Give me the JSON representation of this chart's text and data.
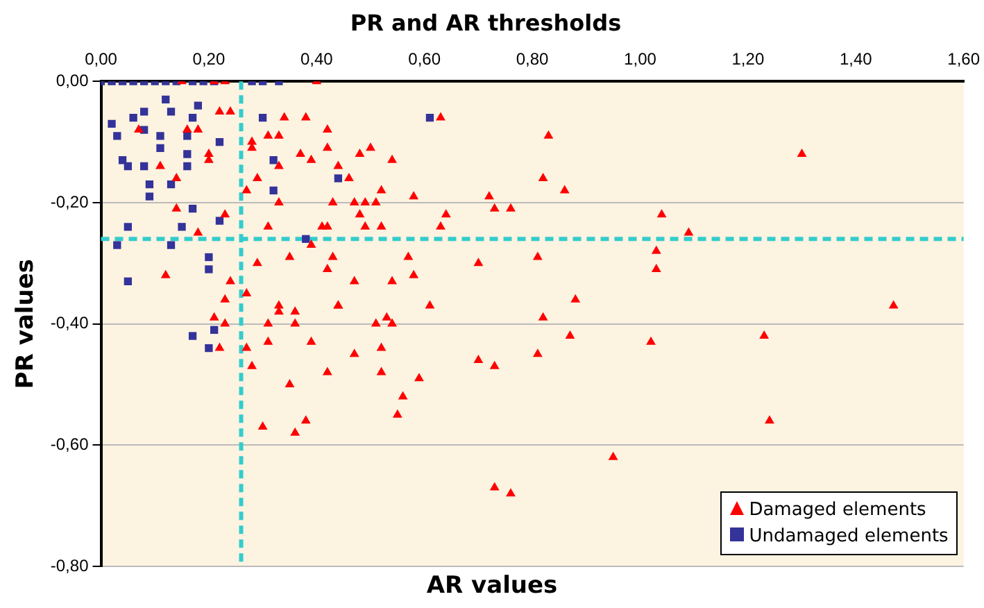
{
  "chart_data": {
    "type": "scatter",
    "title": "PR and AR thresholds",
    "xlabel": "AR values",
    "ylabel": "PR values",
    "xlim": [
      0,
      1.6
    ],
    "xticks": [
      {
        "value": 0,
        "label": "0,00"
      },
      {
        "value": 0.2,
        "label": "0,20"
      },
      {
        "value": 0.4,
        "label": "0,40"
      },
      {
        "value": 0.6,
        "label": "0,60"
      },
      {
        "value": 0.8,
        "label": "0,80"
      },
      {
        "value": 1,
        "label": "1,00"
      },
      {
        "value": 1.2,
        "label": "1,20"
      },
      {
        "value": 1.4,
        "label": "1,40"
      },
      {
        "value": 1.6,
        "label": "1,60"
      }
    ],
    "ylim": [
      -0.8,
      0
    ],
    "yticks": [
      {
        "value": -0.8,
        "label": "-0,80"
      },
      {
        "value": -0.6,
        "label": "-0,60"
      },
      {
        "value": -0.4,
        "label": "-0,40"
      },
      {
        "value": -0.2,
        "label": "-0,20"
      },
      {
        "value": 0,
        "label": "0,00"
      }
    ],
    "grid": "y",
    "legend": "bottom right",
    "ref_lines": [
      {
        "axis": "x",
        "value": 0.26,
        "color": "#33cccc",
        "line_style": "dashed"
      },
      {
        "axis": "y",
        "value": -0.26,
        "color": "#33cccc",
        "line_style": "dashed"
      }
    ],
    "series": [
      {
        "name": "Damaged elements",
        "color": "#ff0000",
        "marker": "triangle",
        "x": [
          0.15,
          0.21,
          0.23,
          0.4,
          0.63,
          0.83,
          1.3,
          0.82,
          0.86,
          0.58,
          0.72,
          0.73,
          0.76,
          0.64,
          0.63,
          1.04,
          1.09,
          0.7,
          0.81,
          1.03,
          1.03,
          0.58,
          0.61,
          0.88,
          1.47,
          0.82,
          0.87,
          0.81,
          1.02,
          1.23,
          0.7,
          0.73,
          0.59,
          1.24,
          0.95,
          0.73,
          0.76,
          0.23,
          0.33,
          0.36,
          0.44,
          0.21,
          0.23,
          0.31,
          0.36,
          0.51,
          0.53,
          0.54,
          0.31,
          0.39,
          0.22,
          0.27,
          0.28,
          0.47,
          0.52,
          0.42,
          0.52,
          0.35,
          0.56,
          0.55,
          0.3,
          0.36,
          0.38,
          0.07,
          0.16,
          0.18,
          0.22,
          0.24,
          0.2,
          0.2,
          0.11,
          0.14,
          0.28,
          0.28,
          0.29,
          0.14,
          0.23,
          0.18,
          0.12,
          0.24,
          0.29,
          0.27,
          0.27,
          0.34,
          0.38,
          0.42,
          0.31,
          0.33,
          0.37,
          0.42,
          0.48,
          0.5,
          0.54,
          0.33,
          0.39,
          0.44,
          0.46,
          0.52,
          0.43,
          0.33,
          0.47,
          0.49,
          0.51,
          0.31,
          0.48,
          0.49,
          0.52,
          0.41,
          0.42,
          0.39,
          0.43,
          0.35,
          0.57,
          0.42,
          0.47,
          0.54,
          0.44,
          0.33
        ],
        "values": [
          0,
          0,
          0,
          0,
          -0.06,
          -0.09,
          -0.12,
          -0.16,
          -0.18,
          -0.19,
          -0.19,
          -0.21,
          -0.21,
          -0.22,
          -0.24,
          -0.22,
          -0.25,
          -0.3,
          -0.29,
          -0.28,
          -0.31,
          -0.32,
          -0.37,
          -0.36,
          -0.37,
          -0.39,
          -0.42,
          -0.45,
          -0.43,
          -0.42,
          -0.46,
          -0.47,
          -0.49,
          -0.56,
          -0.62,
          -0.67,
          -0.68,
          -0.36,
          -0.37,
          -0.38,
          -0.37,
          -0.39,
          -0.4,
          -0.4,
          -0.4,
          -0.4,
          -0.39,
          -0.4,
          -0.43,
          -0.43,
          -0.44,
          -0.44,
          -0.47,
          -0.45,
          -0.44,
          -0.48,
          -0.48,
          -0.5,
          -0.52,
          -0.55,
          -0.57,
          -0.58,
          -0.56,
          -0.08,
          -0.08,
          -0.08,
          -0.05,
          -0.05,
          -0.12,
          -0.13,
          -0.14,
          -0.16,
          -0.1,
          -0.11,
          -0.16,
          -0.21,
          -0.22,
          -0.25,
          -0.32,
          -0.33,
          -0.3,
          -0.35,
          -0.18,
          -0.06,
          -0.06,
          -0.08,
          -0.09,
          -0.09,
          -0.12,
          -0.11,
          -0.12,
          -0.11,
          -0.13,
          -0.14,
          -0.13,
          -0.14,
          -0.16,
          -0.18,
          -0.2,
          -0.2,
          -0.2,
          -0.2,
          -0.2,
          -0.24,
          -0.22,
          -0.24,
          -0.24,
          -0.24,
          -0.24,
          -0.27,
          -0.29,
          -0.29,
          -0.29,
          -0.31,
          -0.33,
          -0.33,
          -0.37,
          -0.38
        ]
      },
      {
        "name": "Undamaged elements",
        "color": "#333399",
        "marker": "square",
        "x": [
          0.0,
          0.02,
          0.04,
          0.06,
          0.08,
          0.1,
          0.12,
          0.14,
          0.17,
          0.19,
          0.21,
          0.28,
          0.3,
          0.33,
          0.61,
          0.17,
          0.21,
          0.2,
          0.02,
          0.03,
          0.06,
          0.08,
          0.12,
          0.13,
          0.18,
          0.17,
          0.08,
          0.11,
          0.16,
          0.11,
          0.16,
          0.22,
          0.04,
          0.05,
          0.08,
          0.16,
          0.09,
          0.13,
          0.09,
          0.17,
          0.05,
          0.15,
          0.22,
          0.03,
          0.13,
          0.2,
          0.2,
          0.05,
          0.3,
          0.32,
          0.44,
          0.32,
          0.38
        ],
        "values": [
          0,
          0,
          0,
          0,
          0,
          0,
          0,
          0,
          0,
          0,
          0,
          0,
          0,
          0,
          -0.06,
          -0.42,
          -0.41,
          -0.44,
          -0.07,
          -0.09,
          -0.06,
          -0.05,
          -0.03,
          -0.05,
          -0.04,
          -0.06,
          -0.08,
          -0.09,
          -0.09,
          -0.11,
          -0.12,
          -0.1,
          -0.13,
          -0.14,
          -0.14,
          -0.14,
          -0.17,
          -0.17,
          -0.19,
          -0.21,
          -0.24,
          -0.24,
          -0.23,
          -0.27,
          -0.27,
          -0.29,
          -0.31,
          -0.33,
          -0.06,
          -0.13,
          -0.16,
          -0.18,
          -0.26
        ]
      }
    ]
  }
}
